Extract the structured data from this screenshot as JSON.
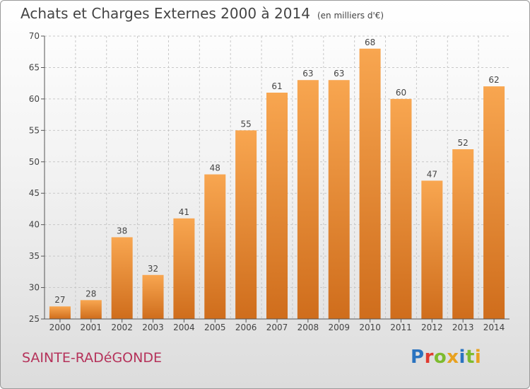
{
  "header": {
    "title": "Achats et Charges Externes 2000 à 2014",
    "unit": "(en milliers d'€)"
  },
  "commune": "SAINTE-RADéGONDE",
  "logo": {
    "text": "Proxiti",
    "letter_colors": [
      "#2a73c0",
      "#e03a2f",
      "#7dbb2e",
      "#e8a11f",
      "#2a73c0",
      "#7dbb2e",
      "#e8a11f"
    ]
  },
  "colors": {
    "bar_top": "#f8a650",
    "bar_bottom": "#cf6d1c",
    "grid": "#c8c8c8",
    "axis": "#555555",
    "text": "#444444",
    "commune": "#b5325a"
  },
  "chart_data": {
    "type": "bar",
    "title": "Achats et Charges Externes 2000 à 2014",
    "subtitle": "(en milliers d'€)",
    "categories": [
      "2000",
      "2001",
      "2002",
      "2003",
      "2004",
      "2005",
      "2006",
      "2007",
      "2008",
      "2009",
      "2010",
      "2011",
      "2012",
      "2013",
      "2014"
    ],
    "values": [
      27,
      28,
      38,
      32,
      41,
      48,
      55,
      61,
      63,
      63,
      68,
      60,
      47,
      52,
      62
    ],
    "ylim": [
      25,
      70
    ],
    "yticks": [
      25,
      30,
      35,
      40,
      45,
      50,
      55,
      60,
      65,
      70
    ],
    "grid": "horizontal dashed",
    "legend": "none",
    "data_labels": true
  }
}
